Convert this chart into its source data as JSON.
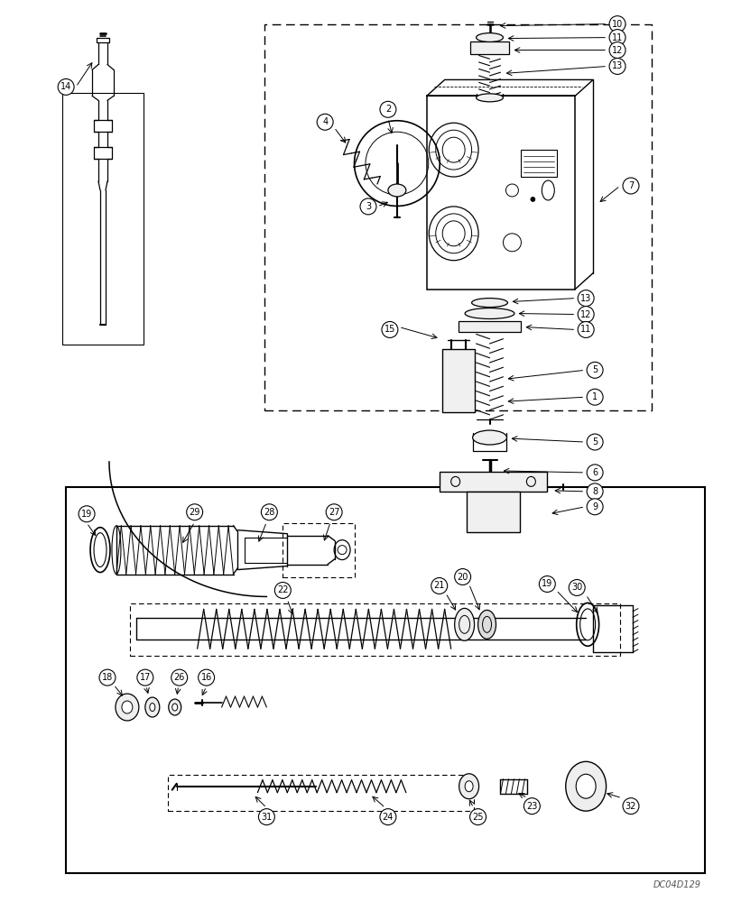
{
  "background_color": "#ffffff",
  "watermark": "DC04D129",
  "lc": "#000000",
  "lw": 0.9
}
